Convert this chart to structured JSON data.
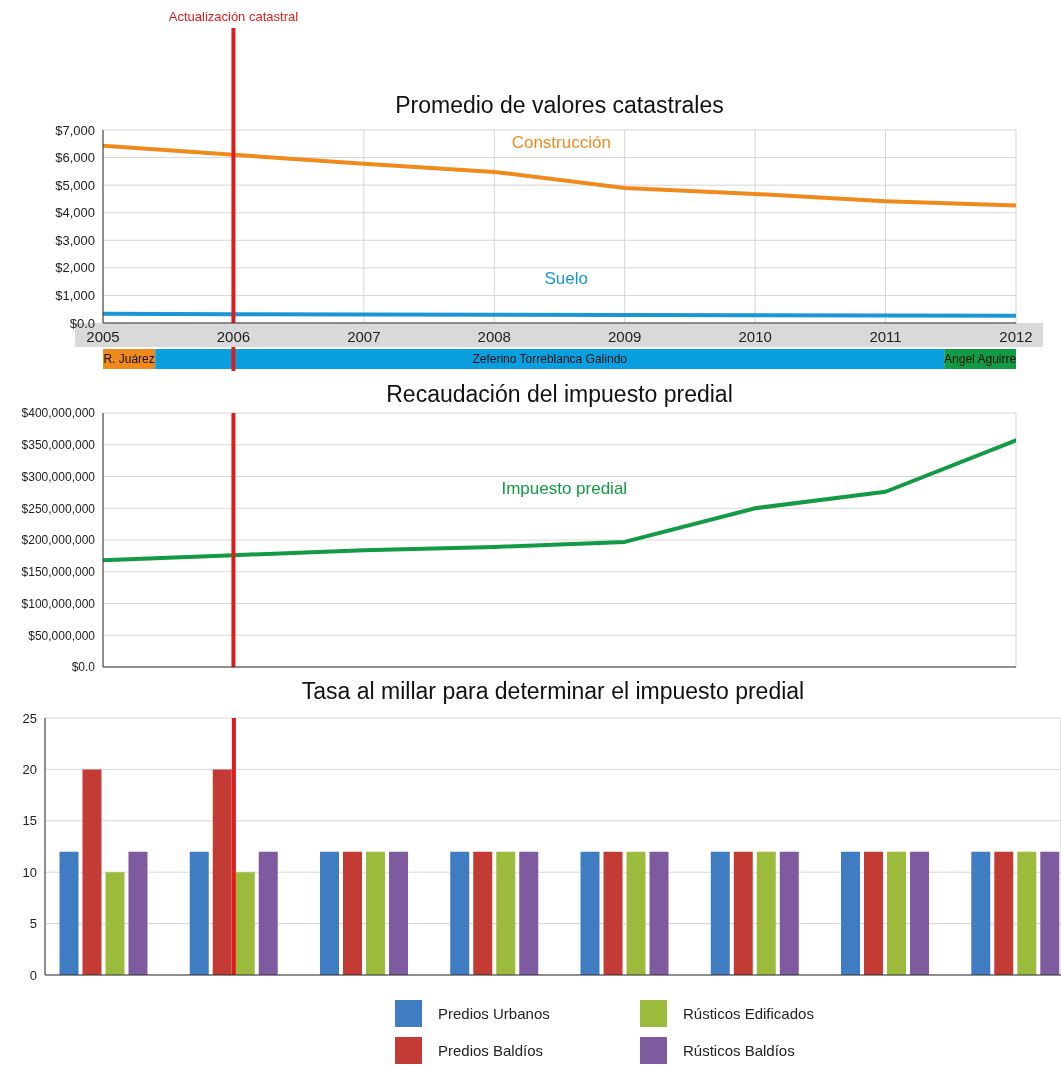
{
  "chart_data": [
    {
      "type": "line",
      "title": "Promedio de valores catastrales",
      "x": [
        2005,
        2006,
        2007,
        2008,
        2009,
        2010,
        2011,
        2012
      ],
      "xlim": [
        2005,
        2012
      ],
      "xticks": [
        2005,
        2006,
        2007,
        2008,
        2009,
        2010,
        2011,
        2012
      ],
      "ylim": [
        0,
        7000
      ],
      "yticks": [
        {
          "value": 0,
          "label": "$0.0"
        },
        {
          "value": 1000,
          "label": "$1,000"
        },
        {
          "value": 2000,
          "label": "$2,000"
        },
        {
          "value": 3000,
          "label": "$3,000"
        },
        {
          "value": 4000,
          "label": "$4,000"
        },
        {
          "value": 5000,
          "label": "$5,000"
        },
        {
          "value": 6000,
          "label": "$6,000"
        },
        {
          "value": 7000,
          "label": "$7,000"
        }
      ],
      "grid": true,
      "series": [
        {
          "name": "Construcción",
          "color": "#f08a1c",
          "values": [
            6430,
            6100,
            5780,
            5480,
            4900,
            4680,
            4420,
            4260
          ]
        },
        {
          "name": "Suelo",
          "color": "#1a96d4",
          "values": [
            340,
            320,
            310,
            300,
            290,
            280,
            270,
            260
          ]
        }
      ],
      "ref_lines": [
        {
          "axis": "x",
          "value": 2006,
          "label": "Actualización catastral",
          "color": "#e01b1b"
        }
      ]
    },
    {
      "type": "bar",
      "orientation": "horizontal",
      "categories": [
        null
      ],
      "xlim": [
        2005,
        2012
      ],
      "tick_labels": false,
      "series": [
        {
          "name": "R. Juárez",
          "color": "#f08a1c",
          "base": [
            2005
          ],
          "values": [
            0.4
          ]
        },
        {
          "name": "Zeferino Torreblanca Galindo",
          "color": "#0aa0e0",
          "base": [
            2005.4
          ],
          "values": [
            6.05
          ]
        },
        {
          "name": "Angel Aguirre",
          "color": "#129a44",
          "base": [
            2011.45
          ],
          "values": [
            0.55
          ]
        }
      ],
      "ref_lines": [
        {
          "axis": "x",
          "value": 2006,
          "color": "#e01b1b"
        }
      ]
    },
    {
      "type": "line",
      "title": "Recaudación del impuesto predial",
      "x": [
        2005,
        2006,
        2007,
        2008,
        2009,
        2010,
        2011,
        2012
      ],
      "xlim": [
        2005,
        2012
      ],
      "xticks": [
        2005,
        2006,
        2007,
        2008,
        2009,
        2010,
        2011,
        2012
      ],
      "tick_labels": "y",
      "ylim": [
        0,
        400000000
      ],
      "yticks": [
        {
          "value": 0,
          "label": "$0.0"
        },
        {
          "value": 50000000,
          "label": "$50,000,000"
        },
        {
          "value": 100000000,
          "label": "$100,000,000"
        },
        {
          "value": 150000000,
          "label": "$150,000,000"
        },
        {
          "value": 200000000,
          "label": "$200,000,000"
        },
        {
          "value": 250000000,
          "label": "$250,000,000"
        },
        {
          "value": 300000000,
          "label": "$300,000,000"
        },
        {
          "value": 350000000,
          "label": "$350,000,000"
        },
        {
          "value": 400000000,
          "label": "$400,000,000"
        }
      ],
      "grid": true,
      "series": [
        {
          "name": "Impuesto predial",
          "color": "#129a44",
          "values": [
            168000000,
            176000000,
            184000000,
            189000000,
            197000000,
            250000000,
            276000000,
            357000000
          ]
        }
      ],
      "ref_lines": [
        {
          "axis": "x",
          "value": 2006,
          "color": "#e01b1b"
        }
      ]
    },
    {
      "type": "bar",
      "title": "Tasa al millar para determinar el impuesto predial",
      "x": [
        2005,
        2006,
        2007,
        2008,
        2009,
        2010,
        2011,
        2012
      ],
      "xlim": [
        2004.55,
        2012.35
      ],
      "xticks": [
        2005,
        2006,
        2007,
        2008,
        2009,
        2010,
        2011,
        2012
      ],
      "tick_labels": "y",
      "ylim": [
        0,
        25
      ],
      "yticks": [
        0,
        5,
        10,
        15,
        20,
        25
      ],
      "grid": true,
      "legend": "bottom",
      "series": [
        {
          "name": "Predios Urbanos",
          "color": "#3f7cc2",
          "values": [
            12,
            12,
            12,
            12,
            12,
            12,
            12,
            12
          ]
        },
        {
          "name": "Predios Baldíos",
          "color": "#c23b35",
          "values": [
            20,
            20,
            12,
            12,
            12,
            12,
            12,
            12
          ]
        },
        {
          "name": "Rústicos Edificados",
          "color": "#9cbb3c",
          "values": [
            10,
            10,
            12,
            12,
            12,
            12,
            12,
            12
          ]
        },
        {
          "name": "Rústicos Baldíos",
          "color": "#7d5b9e",
          "values": [
            12,
            12,
            12,
            12,
            12,
            12,
            12,
            12
          ]
        }
      ],
      "ref_lines": [
        {
          "axis": "x",
          "value": 2006,
          "color": "#e01b1b"
        }
      ]
    }
  ]
}
